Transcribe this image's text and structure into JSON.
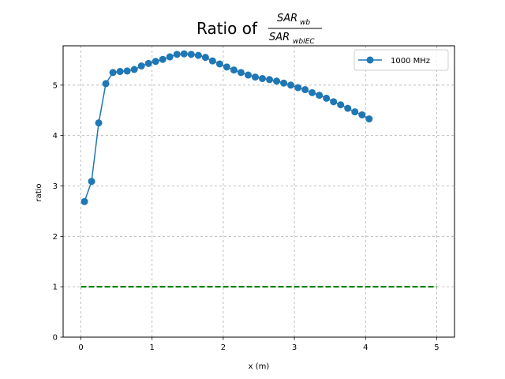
{
  "chart_data": {
    "type": "line",
    "title": {
      "prefix": "Ratio of",
      "numerator": "SAR",
      "numerator_sub": "wb",
      "denominator": "SAR",
      "denominator_sub": "wbIEC"
    },
    "xlabel": "x (m)",
    "ylabel": "ratio",
    "xlim": [
      -0.25,
      5.25
    ],
    "ylim": [
      0,
      5.78
    ],
    "xticks": [
      0,
      1,
      2,
      3,
      4,
      5
    ],
    "yticks": [
      0,
      1,
      2,
      3,
      4,
      5
    ],
    "grid": true,
    "grid_style": "dashed",
    "legend_position": "top-right",
    "series": [
      {
        "name": "1000 MHz",
        "color": "#1f77b4",
        "marker": "circle",
        "x": [
          0.05,
          0.15,
          0.25,
          0.35,
          0.45,
          0.55,
          0.65,
          0.75,
          0.85,
          0.95,
          1.05,
          1.15,
          1.25,
          1.35,
          1.45,
          1.55,
          1.65,
          1.75,
          1.85,
          1.95,
          2.05,
          2.15,
          2.25,
          2.35,
          2.45,
          2.55,
          2.65,
          2.75,
          2.85,
          2.95,
          3.05,
          3.15,
          3.25,
          3.35,
          3.45,
          3.55,
          3.65,
          3.75,
          3.85,
          3.95,
          4.05
        ],
        "y": [
          2.69,
          3.09,
          4.25,
          5.03,
          5.25,
          5.27,
          5.28,
          5.31,
          5.38,
          5.43,
          5.47,
          5.51,
          5.56,
          5.61,
          5.62,
          5.61,
          5.59,
          5.55,
          5.48,
          5.42,
          5.36,
          5.3,
          5.25,
          5.2,
          5.16,
          5.13,
          5.11,
          5.08,
          5.04,
          5.0,
          4.95,
          4.91,
          4.85,
          4.8,
          4.74,
          4.67,
          4.61,
          4.54,
          4.47,
          4.41,
          4.33
        ]
      },
      {
        "color": "#008000",
        "style": "dashed",
        "x": [
          0.0,
          5.0
        ],
        "y": [
          1.0,
          1.0
        ]
      }
    ]
  }
}
